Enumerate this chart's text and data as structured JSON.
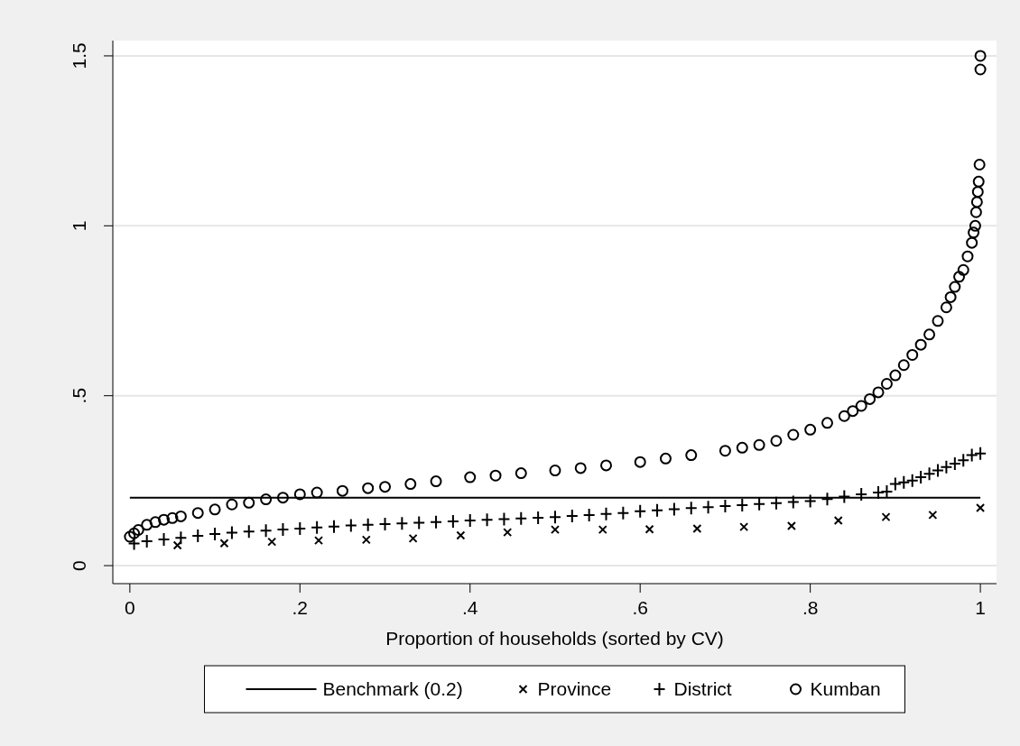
{
  "chart_data": {
    "type": "scatter",
    "xlabel": "Proportion of households (sorted by CV)",
    "xlim": [
      -0.02,
      1.019
    ],
    "ylim": [
      -0.053,
      1.545
    ],
    "xticks": [
      0,
      {
        "value": 0.2,
        "label": ".2"
      },
      {
        "value": 0.4,
        "label": ".4"
      },
      {
        "value": 0.6,
        "label": ".6"
      },
      {
        "value": 0.8,
        "label": ".8"
      },
      1
    ],
    "yticks": [
      0,
      {
        "value": 0.5,
        "label": ".5"
      },
      1,
      1.5
    ],
    "grid": "y",
    "legend": "bottom",
    "ref_lines": [
      {
        "axis": "y",
        "value": 0.2,
        "label": "Benchmark (0.2)",
        "color": "#000000",
        "line_style": "solid"
      }
    ],
    "series": [
      {
        "name": "Province",
        "color": "#000000",
        "marker": "x",
        "x": [
          0.056,
          0.111,
          0.167,
          0.222,
          0.278,
          0.333,
          0.389,
          0.444,
          0.5,
          0.556,
          0.611,
          0.667,
          0.722,
          0.778,
          0.833,
          0.889,
          0.944,
          1.0
        ],
        "values": [
          0.06,
          0.066,
          0.07,
          0.074,
          0.076,
          0.08,
          0.089,
          0.098,
          0.106,
          0.106,
          0.107,
          0.109,
          0.114,
          0.117,
          0.133,
          0.143,
          0.149,
          0.17
        ]
      },
      {
        "name": "District",
        "color": "#000000",
        "marker": "cross",
        "x": [
          0.005,
          0.02,
          0.04,
          0.06,
          0.08,
          0.1,
          0.12,
          0.14,
          0.16,
          0.18,
          0.2,
          0.22,
          0.24,
          0.26,
          0.28,
          0.3,
          0.32,
          0.34,
          0.36,
          0.38,
          0.4,
          0.42,
          0.44,
          0.46,
          0.48,
          0.5,
          0.52,
          0.54,
          0.56,
          0.58,
          0.6,
          0.62,
          0.64,
          0.66,
          0.68,
          0.7,
          0.72,
          0.74,
          0.76,
          0.78,
          0.8,
          0.82,
          0.84,
          0.86,
          0.88,
          0.89,
          0.9,
          0.91,
          0.92,
          0.93,
          0.94,
          0.95,
          0.96,
          0.97,
          0.98,
          0.99,
          1.0
        ],
        "values": [
          0.065,
          0.072,
          0.077,
          0.082,
          0.088,
          0.093,
          0.097,
          0.1,
          0.103,
          0.106,
          0.109,
          0.112,
          0.115,
          0.118,
          0.12,
          0.122,
          0.124,
          0.126,
          0.128,
          0.13,
          0.133,
          0.135,
          0.137,
          0.139,
          0.141,
          0.143,
          0.146,
          0.149,
          0.152,
          0.155,
          0.16,
          0.163,
          0.166,
          0.169,
          0.172,
          0.175,
          0.178,
          0.181,
          0.184,
          0.187,
          0.19,
          0.196,
          0.203,
          0.21,
          0.215,
          0.218,
          0.24,
          0.245,
          0.25,
          0.26,
          0.27,
          0.28,
          0.29,
          0.3,
          0.31,
          0.325,
          0.33
        ]
      },
      {
        "name": "Kumban",
        "color": "#000000",
        "marker": "circle",
        "x": [
          0,
          0.005,
          0.01,
          0.02,
          0.03,
          0.04,
          0.05,
          0.06,
          0.08,
          0.1,
          0.12,
          0.14,
          0.16,
          0.18,
          0.2,
          0.22,
          0.25,
          0.28,
          0.3,
          0.33,
          0.36,
          0.4,
          0.43,
          0.46,
          0.5,
          0.53,
          0.56,
          0.6,
          0.63,
          0.66,
          0.7,
          0.72,
          0.74,
          0.76,
          0.78,
          0.8,
          0.82,
          0.84,
          0.85,
          0.86,
          0.87,
          0.88,
          0.89,
          0.9,
          0.91,
          0.92,
          0.93,
          0.94,
          0.95,
          0.96,
          0.965,
          0.97,
          0.975,
          0.98,
          0.985,
          0.99,
          0.992,
          0.994,
          0.995,
          0.996,
          0.997,
          0.998,
          0.999,
          1.0,
          1.0
        ],
        "values": [
          0.085,
          0.095,
          0.105,
          0.12,
          0.128,
          0.135,
          0.14,
          0.145,
          0.155,
          0.165,
          0.18,
          0.185,
          0.195,
          0.2,
          0.21,
          0.215,
          0.22,
          0.228,
          0.232,
          0.24,
          0.248,
          0.26,
          0.265,
          0.272,
          0.28,
          0.287,
          0.295,
          0.305,
          0.315,
          0.325,
          0.338,
          0.347,
          0.355,
          0.367,
          0.385,
          0.4,
          0.42,
          0.44,
          0.455,
          0.47,
          0.49,
          0.51,
          0.535,
          0.56,
          0.59,
          0.62,
          0.65,
          0.68,
          0.72,
          0.76,
          0.79,
          0.82,
          0.85,
          0.87,
          0.91,
          0.95,
          0.98,
          1.0,
          1.04,
          1.07,
          1.1,
          1.13,
          1.18,
          1.46,
          1.5
        ]
      }
    ]
  }
}
